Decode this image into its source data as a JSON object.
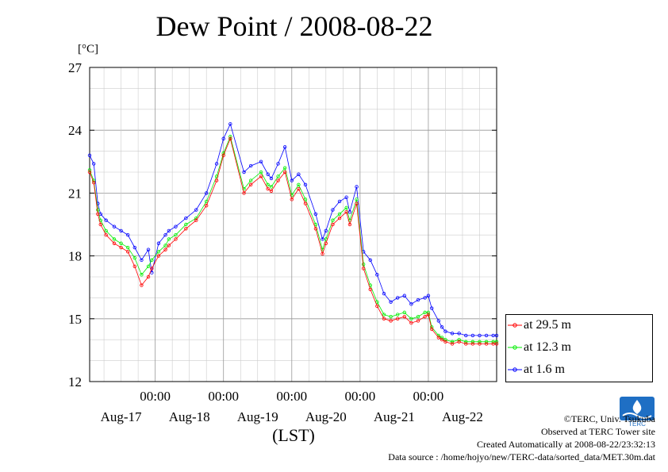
{
  "title": "Dew Point / 2008-08-22",
  "unit_label": "[°C]",
  "x_axis_label": "(LST)",
  "legend": [
    {
      "label": "at 29.5 m",
      "color": "#ff0000"
    },
    {
      "label": "at 12.3 m",
      "color": "#00ee00"
    },
    {
      "label": "at 1.6 m",
      "color": "#0000ff"
    }
  ],
  "credits": {
    "copyright": "©TERC, Univ. Tsukuba",
    "observed": "Observed at TERC Tower site",
    "created": "Created Automatically at 2008-08-22/23:32:13",
    "source": "Data source : /home/hojyo/new/TERC-data/sorted_data/MET.30m.dat"
  },
  "logo_text": "TERC",
  "chart_data": {
    "type": "line",
    "title": "Dew Point / 2008-08-22",
    "ylabel": "[°C]",
    "xlabel": "(LST)",
    "x_unit": "day",
    "xlim": [
      -0.96,
      5.0
    ],
    "ylim": [
      12,
      27
    ],
    "yticks": [
      12,
      15,
      18,
      21,
      24,
      27
    ],
    "xticks": [
      {
        "day": 0,
        "label": "00:00",
        "date": "Aug-17"
      },
      {
        "day": 1,
        "label": "00:00",
        "date": "Aug-18"
      },
      {
        "day": 2,
        "label": "00:00",
        "date": "Aug-19"
      },
      {
        "day": 3,
        "label": "00:00",
        "date": "Aug-20"
      },
      {
        "day": 4,
        "label": "00:00",
        "date": "Aug-21"
      },
      {
        "day": 5,
        "label": "",
        "date": "Aug-22"
      }
    ],
    "date_labels": [
      {
        "day": -0.5,
        "label": "Aug-17"
      },
      {
        "day": 0.5,
        "label": "Aug-18"
      },
      {
        "day": 1.5,
        "label": "Aug-19"
      },
      {
        "day": 2.5,
        "label": "Aug-20"
      },
      {
        "day": 3.5,
        "label": "Aug-21"
      },
      {
        "day": 4.5,
        "label": "Aug-22"
      }
    ],
    "grid": true,
    "series": [
      {
        "name": "at 29.5 m",
        "color": "#ff0000",
        "x": [
          -0.96,
          -0.9,
          -0.84,
          -0.8,
          -0.72,
          -0.6,
          -0.5,
          -0.4,
          -0.3,
          -0.2,
          -0.1,
          -0.05,
          0.05,
          0.15,
          0.2,
          0.3,
          0.45,
          0.6,
          0.75,
          0.9,
          1.0,
          1.1,
          1.3,
          1.4,
          1.55,
          1.65,
          1.7,
          1.8,
          1.9,
          2.0,
          2.1,
          2.2,
          2.35,
          2.45,
          2.5,
          2.6,
          2.7,
          2.8,
          2.85,
          2.95,
          3.05,
          3.15,
          3.25,
          3.35,
          3.45,
          3.55,
          3.65,
          3.75,
          3.85,
          3.95,
          4.0,
          4.05,
          4.15,
          4.2,
          4.25,
          4.35,
          4.45,
          4.55,
          4.65,
          4.75,
          4.85,
          4.95,
          5.0
        ],
        "y": [
          22.0,
          21.5,
          20.0,
          19.5,
          19.0,
          18.6,
          18.4,
          18.2,
          17.5,
          16.6,
          17.0,
          17.4,
          18.0,
          18.3,
          18.5,
          18.8,
          19.3,
          19.7,
          20.4,
          21.6,
          22.8,
          23.6,
          21.0,
          21.4,
          21.8,
          21.2,
          21.1,
          21.6,
          22.0,
          20.7,
          21.2,
          20.5,
          19.3,
          18.1,
          18.6,
          19.5,
          19.8,
          20.1,
          19.5,
          20.5,
          17.4,
          16.4,
          15.6,
          15.0,
          14.9,
          15.0,
          15.1,
          14.8,
          14.9,
          15.1,
          15.2,
          14.5,
          14.1,
          14.0,
          13.9,
          13.8,
          13.9,
          13.8,
          13.8,
          13.8,
          13.8,
          13.8,
          13.8
        ]
      },
      {
        "name": "at 12.3 m",
        "color": "#00ee00",
        "x": [
          -0.96,
          -0.9,
          -0.84,
          -0.8,
          -0.72,
          -0.6,
          -0.5,
          -0.4,
          -0.3,
          -0.2,
          -0.1,
          -0.05,
          0.05,
          0.15,
          0.2,
          0.3,
          0.45,
          0.6,
          0.75,
          0.9,
          1.0,
          1.1,
          1.3,
          1.4,
          1.55,
          1.65,
          1.7,
          1.8,
          1.9,
          2.0,
          2.1,
          2.2,
          2.35,
          2.45,
          2.5,
          2.6,
          2.7,
          2.8,
          2.85,
          2.95,
          3.05,
          3.15,
          3.25,
          3.35,
          3.45,
          3.55,
          3.65,
          3.75,
          3.85,
          3.95,
          4.0,
          4.05,
          4.15,
          4.2,
          4.25,
          4.35,
          4.45,
          4.55,
          4.65,
          4.75,
          4.85,
          4.95,
          5.0
        ],
        "y": [
          22.1,
          21.6,
          20.2,
          19.7,
          19.2,
          18.8,
          18.6,
          18.4,
          17.9,
          17.1,
          17.5,
          17.8,
          18.2,
          18.5,
          18.8,
          19.0,
          19.5,
          19.8,
          20.6,
          21.8,
          22.9,
          23.7,
          21.2,
          21.6,
          22.0,
          21.4,
          21.3,
          21.8,
          22.2,
          20.9,
          21.4,
          20.7,
          19.5,
          18.3,
          18.8,
          19.7,
          20.0,
          20.3,
          19.7,
          20.7,
          17.6,
          16.6,
          15.8,
          15.2,
          15.1,
          15.2,
          15.3,
          15.0,
          15.1,
          15.3,
          15.3,
          14.6,
          14.2,
          14.1,
          14.0,
          13.9,
          14.0,
          13.9,
          13.9,
          13.9,
          13.9,
          13.9,
          13.9
        ]
      },
      {
        "name": "at 1.6 m",
        "color": "#0000ff",
        "x": [
          -0.96,
          -0.9,
          -0.84,
          -0.8,
          -0.72,
          -0.6,
          -0.5,
          -0.4,
          -0.3,
          -0.2,
          -0.1,
          -0.05,
          0.05,
          0.15,
          0.2,
          0.3,
          0.45,
          0.6,
          0.75,
          0.9,
          1.0,
          1.1,
          1.3,
          1.4,
          1.55,
          1.65,
          1.7,
          1.8,
          1.9,
          2.0,
          2.1,
          2.2,
          2.35,
          2.45,
          2.5,
          2.6,
          2.7,
          2.8,
          2.85,
          2.95,
          3.05,
          3.15,
          3.25,
          3.35,
          3.45,
          3.55,
          3.65,
          3.75,
          3.85,
          3.95,
          4.0,
          4.05,
          4.15,
          4.2,
          4.25,
          4.35,
          4.45,
          4.55,
          4.65,
          4.75,
          4.85,
          4.95,
          5.0
        ],
        "y": [
          22.8,
          22.4,
          20.5,
          20.0,
          19.7,
          19.4,
          19.2,
          19.0,
          18.4,
          17.8,
          18.3,
          17.2,
          18.6,
          19.0,
          19.2,
          19.4,
          19.8,
          20.2,
          21.0,
          22.4,
          23.6,
          24.3,
          22.0,
          22.3,
          22.5,
          21.9,
          21.7,
          22.4,
          23.2,
          21.6,
          21.9,
          21.4,
          20.0,
          18.8,
          19.2,
          20.2,
          20.6,
          20.8,
          20.1,
          21.3,
          18.2,
          17.8,
          17.1,
          16.2,
          15.8,
          16.0,
          16.1,
          15.7,
          15.9,
          16.0,
          16.1,
          15.5,
          14.9,
          14.6,
          14.4,
          14.3,
          14.3,
          14.2,
          14.2,
          14.2,
          14.2,
          14.2,
          14.2
        ]
      }
    ]
  }
}
